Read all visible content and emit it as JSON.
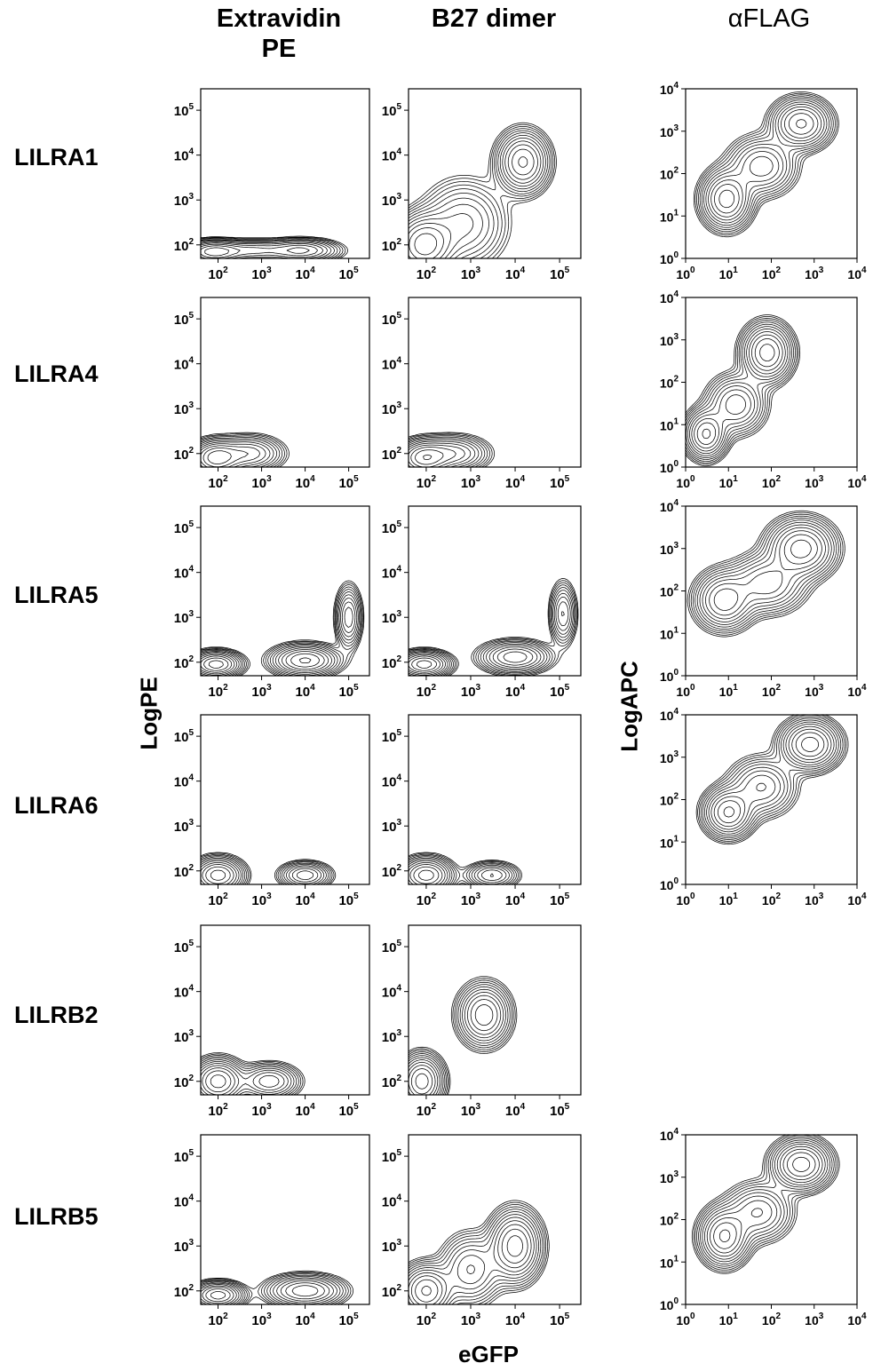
{
  "headers": {
    "extravidin_line1": "Extravidin",
    "extravidin_line2": "PE",
    "b27": "B27 dimer",
    "aflag": "αFLAG"
  },
  "rows": [
    "LILRA1",
    "LILRA4",
    "LILRA5",
    "LILRA6",
    "LILRB2",
    "LILRB5"
  ],
  "axis_titles": {
    "pe_y": "LogPE",
    "apc_y": "LogAPC",
    "x": "eGFP"
  },
  "chart_data": [
    {
      "type": "contour-grid",
      "panel_set": "Extravidin PE / B27 dimer",
      "x_scale": "log",
      "y_scale": "log",
      "xlim": [
        40,
        300000
      ],
      "ylim": [
        50,
        300000
      ],
      "x_ticks": [
        "10^2",
        "10^3",
        "10^4",
        "10^5"
      ],
      "y_ticks": [
        "10^2",
        "10^3",
        "10^4",
        "10^5"
      ],
      "xlabel": "eGFP",
      "ylabel": "LogPE",
      "panels": [
        {
          "row": "LILRA1",
          "column": "Extravidin PE",
          "populations": [
            {
              "x": 80,
              "y": 70,
              "sx": 0.35,
              "sy": 0.13,
              "w": 1.0
            },
            {
              "x": 600,
              "y": 75,
              "sx": 0.45,
              "sy": 0.12,
              "w": 0.5
            },
            {
              "x": 8000,
              "y": 75,
              "sx": 0.45,
              "sy": 0.13,
              "w": 0.7
            }
          ]
        },
        {
          "row": "LILRA1",
          "column": "B27 dimer",
          "populations": [
            {
              "x": 90,
              "y": 100,
              "sx": 0.35,
              "sy": 0.35,
              "w": 1.0
            },
            {
              "x": 700,
              "y": 300,
              "sx": 0.5,
              "sy": 0.5,
              "w": 0.4
            },
            {
              "x": 15000,
              "y": 7000,
              "sx": 0.3,
              "sy": 0.35,
              "w": 0.9
            }
          ]
        },
        {
          "row": "LILRA4",
          "column": "Extravidin PE",
          "populations": [
            {
              "x": 90,
              "y": 80,
              "sx": 0.3,
              "sy": 0.2,
              "w": 1.0
            },
            {
              "x": 500,
              "y": 100,
              "sx": 0.4,
              "sy": 0.2,
              "w": 0.6
            }
          ]
        },
        {
          "row": "LILRA4",
          "column": "B27 dimer",
          "populations": [
            {
              "x": 90,
              "y": 80,
              "sx": 0.3,
              "sy": 0.2,
              "w": 1.0
            },
            {
              "x": 400,
              "y": 100,
              "sx": 0.4,
              "sy": 0.2,
              "w": 0.6
            }
          ]
        },
        {
          "row": "LILRA5",
          "column": "Extravidin PE",
          "populations": [
            {
              "x": 90,
              "y": 90,
              "sx": 0.3,
              "sy": 0.15,
              "w": 1.0
            },
            {
              "x": 10000,
              "y": 110,
              "sx": 0.4,
              "sy": 0.18,
              "w": 0.9
            },
            {
              "x": 100000,
              "y": 1000,
              "sx": 0.15,
              "sy": 0.35,
              "w": 0.6
            }
          ]
        },
        {
          "row": "LILRA5",
          "column": "B27 dimer",
          "populations": [
            {
              "x": 90,
              "y": 90,
              "sx": 0.3,
              "sy": 0.15,
              "w": 1.0
            },
            {
              "x": 10000,
              "y": 130,
              "sx": 0.4,
              "sy": 0.18,
              "w": 0.8
            },
            {
              "x": 120000,
              "y": 1200,
              "sx": 0.15,
              "sy": 0.35,
              "w": 0.5
            }
          ]
        },
        {
          "row": "LILRA6",
          "column": "Extravidin PE",
          "populations": [
            {
              "x": 100,
              "y": 80,
              "sx": 0.3,
              "sy": 0.2,
              "w": 1.0
            },
            {
              "x": 10000,
              "y": 80,
              "sx": 0.3,
              "sy": 0.15,
              "w": 0.6
            }
          ]
        },
        {
          "row": "LILRA6",
          "column": "B27 dimer",
          "populations": [
            {
              "x": 100,
              "y": 80,
              "sx": 0.3,
              "sy": 0.2,
              "w": 1.0
            },
            {
              "x": 3000,
              "y": 80,
              "sx": 0.3,
              "sy": 0.15,
              "w": 0.5
            }
          ]
        },
        {
          "row": "LILRB2",
          "column": "Extravidin PE",
          "populations": [
            {
              "x": 100,
              "y": 100,
              "sx": 0.3,
              "sy": 0.25,
              "w": 1.0
            },
            {
              "x": 1500,
              "y": 100,
              "sx": 0.35,
              "sy": 0.2,
              "w": 0.6
            }
          ]
        },
        {
          "row": "LILRB2",
          "column": "B27 dimer",
          "populations": [
            {
              "x": 80,
              "y": 100,
              "sx": 0.25,
              "sy": 0.3,
              "w": 1.0
            },
            {
              "x": 2000,
              "y": 3000,
              "sx": 0.3,
              "sy": 0.35,
              "w": 0.8
            }
          ]
        },
        {
          "row": "LILRB5",
          "column": "Extravidin PE",
          "populations": [
            {
              "x": 100,
              "y": 80,
              "sx": 0.3,
              "sy": 0.15,
              "w": 1.0
            },
            {
              "x": 10000,
              "y": 100,
              "sx": 0.45,
              "sy": 0.18,
              "w": 0.8
            }
          ]
        },
        {
          "row": "LILRB5",
          "column": "B27 dimer",
          "populations": [
            {
              "x": 100,
              "y": 100,
              "sx": 0.3,
              "sy": 0.3,
              "w": 0.9
            },
            {
              "x": 1000,
              "y": 300,
              "sx": 0.35,
              "sy": 0.4,
              "w": 0.5
            },
            {
              "x": 10000,
              "y": 1000,
              "sx": 0.3,
              "sy": 0.4,
              "w": 1.0
            }
          ]
        }
      ]
    },
    {
      "type": "contour-grid",
      "panel_set": "αFLAG",
      "x_scale": "log",
      "y_scale": "log",
      "xlim": [
        1,
        10000
      ],
      "ylim": [
        1,
        10000
      ],
      "x_ticks": [
        "10^0",
        "10^1",
        "10^2",
        "10^3",
        "10^4"
      ],
      "y_ticks": [
        "10^0",
        "10^1",
        "10^2",
        "10^3",
        "10^4"
      ],
      "xlabel": "",
      "ylabel": "LogAPC",
      "panels": [
        {
          "row": "LILRA1",
          "column": "αFLAG",
          "populations": [
            {
              "x": 9,
              "y": 25,
              "sx": 0.3,
              "sy": 0.35,
              "w": 1.0
            },
            {
              "x": 60,
              "y": 150,
              "sx": 0.4,
              "sy": 0.35,
              "w": 0.6
            },
            {
              "x": 500,
              "y": 1500,
              "sx": 0.35,
              "sy": 0.3,
              "w": 0.9
            }
          ]
        },
        {
          "row": "LILRA4",
          "column": "αFLAG",
          "populations": [
            {
              "x": 3,
              "y": 6,
              "sx": 0.25,
              "sy": 0.3,
              "w": 0.9
            },
            {
              "x": 15,
              "y": 30,
              "sx": 0.35,
              "sy": 0.35,
              "w": 0.6
            },
            {
              "x": 80,
              "y": 500,
              "sx": 0.3,
              "sy": 0.35,
              "w": 1.0
            }
          ]
        },
        {
          "row": "LILRA5",
          "column": "αFLAG",
          "populations": [
            {
              "x": 8,
              "y": 60,
              "sx": 0.35,
              "sy": 0.35,
              "w": 0.8
            },
            {
              "x": 80,
              "y": 150,
              "sx": 0.45,
              "sy": 0.35,
              "w": 0.6
            },
            {
              "x": 500,
              "y": 1000,
              "sx": 0.4,
              "sy": 0.35,
              "w": 1.0
            }
          ]
        },
        {
          "row": "LILRA6",
          "column": "αFLAG",
          "populations": [
            {
              "x": 10,
              "y": 50,
              "sx": 0.3,
              "sy": 0.3,
              "w": 0.9
            },
            {
              "x": 60,
              "y": 200,
              "sx": 0.4,
              "sy": 0.35,
              "w": 0.5
            },
            {
              "x": 800,
              "y": 2000,
              "sx": 0.35,
              "sy": 0.3,
              "w": 1.0
            }
          ]
        },
        {
          "row": "LILRB5",
          "column": "αFLAG",
          "populations": [
            {
              "x": 8,
              "y": 40,
              "sx": 0.3,
              "sy": 0.35,
              "w": 0.9
            },
            {
              "x": 50,
              "y": 150,
              "sx": 0.4,
              "sy": 0.35,
              "w": 0.5
            },
            {
              "x": 500,
              "y": 2000,
              "sx": 0.35,
              "sy": 0.3,
              "w": 1.0
            }
          ]
        }
      ]
    }
  ]
}
